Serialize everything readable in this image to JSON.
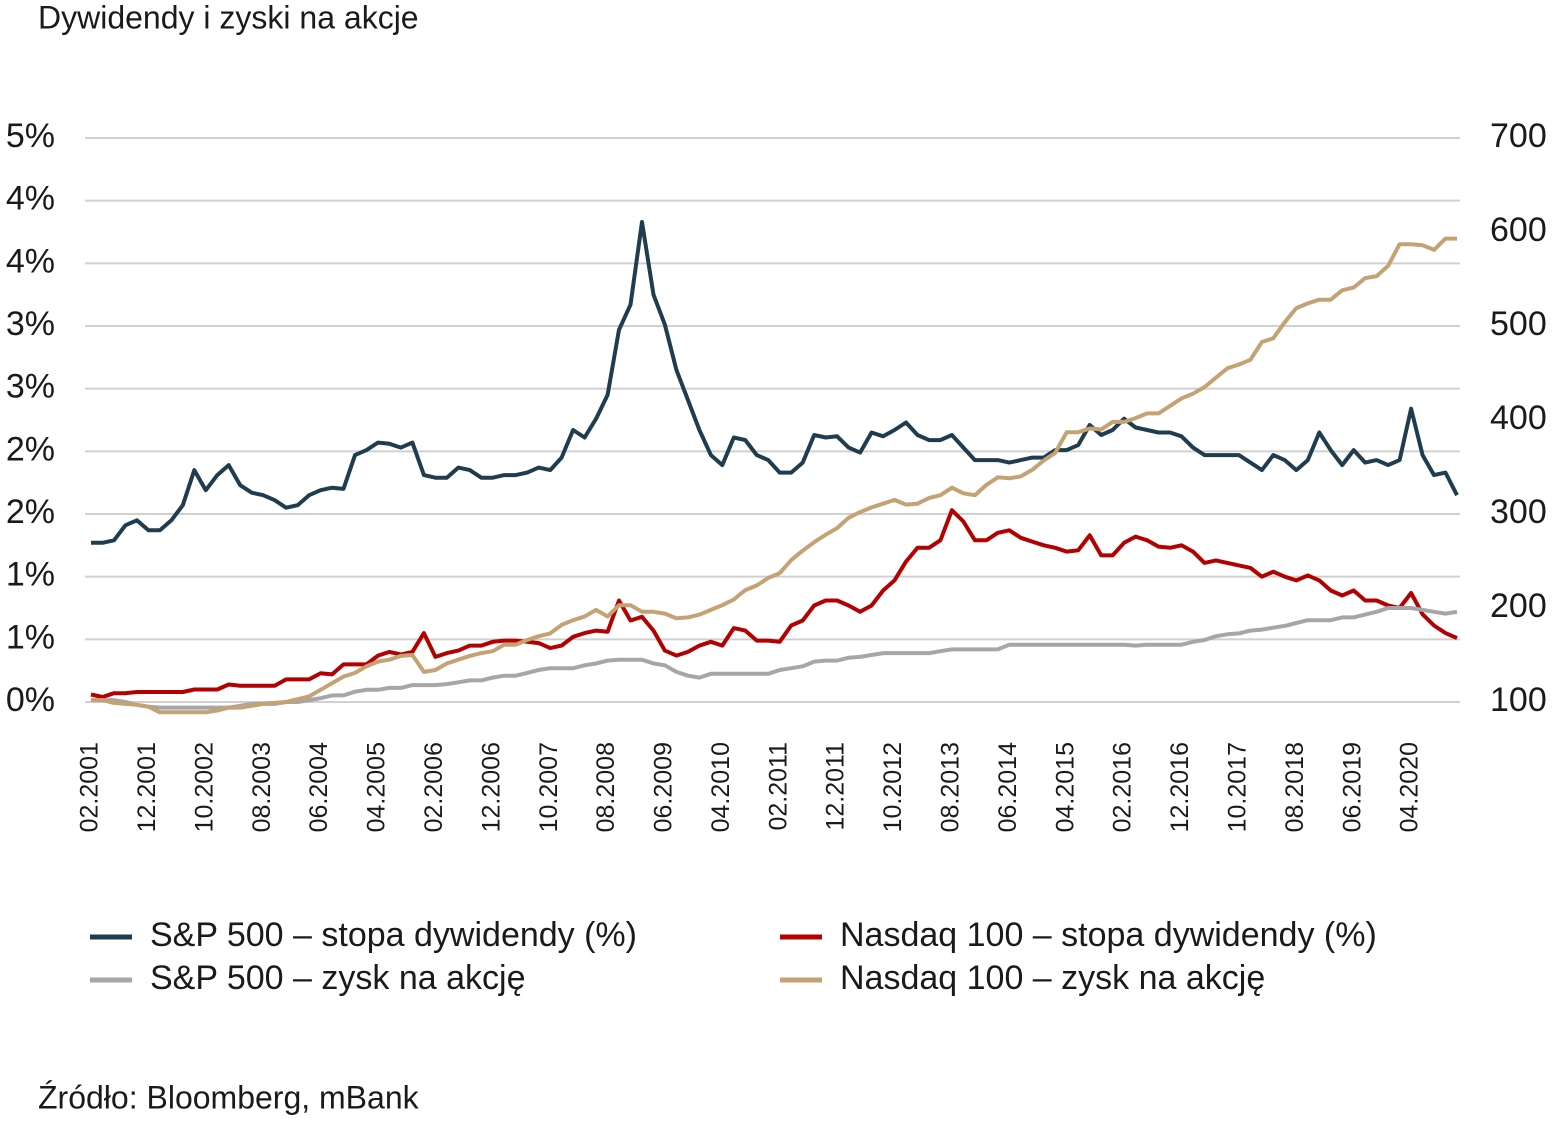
{
  "chart_data": {
    "type": "line",
    "title": "Dywidendy i zyski na akcje",
    "source": "Źródło: Bloomberg, mBank",
    "categories": [
      "02.2001",
      null,
      null,
      null,
      null,
      "12.2001",
      null,
      null,
      null,
      null,
      "10.2002",
      null,
      null,
      null,
      null,
      "08.2003",
      null,
      null,
      null,
      null,
      "06.2004",
      null,
      null,
      null,
      null,
      "04.2005",
      null,
      null,
      null,
      null,
      "02.2006",
      null,
      null,
      null,
      null,
      "12.2006",
      null,
      null,
      null,
      null,
      "10.2007",
      null,
      null,
      null,
      null,
      "08.2008",
      null,
      null,
      null,
      null,
      "06.2009",
      null,
      null,
      null,
      null,
      "04.2010",
      null,
      null,
      null,
      null,
      "02.2011",
      null,
      null,
      null,
      null,
      "12.2011",
      null,
      null,
      null,
      null,
      "10.2012",
      null,
      null,
      null,
      null,
      "08.2013",
      null,
      null,
      null,
      null,
      "06.2014",
      null,
      null,
      null,
      null,
      "04.2015",
      null,
      null,
      null,
      null,
      "02.2016",
      null,
      null,
      null,
      null,
      "12.2016",
      null,
      null,
      null,
      null,
      "10.2017",
      null,
      null,
      null,
      null,
      "08.2018",
      null,
      null,
      null,
      null,
      "06.2019",
      null,
      null,
      null,
      null,
      "04.2020",
      null,
      null,
      null,
      null
    ],
    "ylim": [
      0,
      4.5
    ],
    "yticks": [
      {
        "value": 0,
        "label": "0%"
      },
      {
        "value": 0.5,
        "label": "1%"
      },
      {
        "value": 1,
        "label": "1%"
      },
      {
        "value": 1.5,
        "label": "2%"
      },
      {
        "value": 2,
        "label": "2%"
      },
      {
        "value": 2.5,
        "label": "3%"
      },
      {
        "value": 3,
        "label": "3%"
      },
      {
        "value": 3.5,
        "label": "4%"
      },
      {
        "value": 4,
        "label": "4%"
      },
      {
        "value": 4.5,
        "label": "5%"
      }
    ],
    "y2lim": [
      100,
      700
    ],
    "y2ticks": [
      100,
      200,
      300,
      400,
      500,
      600,
      700
    ],
    "grid": true,
    "series": [
      {
        "name": "S&P 500 – stopa dywidendy (%)",
        "color": "#1f3d4f",
        "values": [
          1.27,
          1.27,
          1.29,
          1.41,
          1.45,
          1.37,
          1.37,
          1.45,
          1.57,
          1.85,
          1.69,
          1.81,
          1.89,
          1.73,
          1.67,
          1.65,
          1.61,
          1.55,
          1.57,
          1.65,
          1.69,
          1.71,
          1.7,
          1.97,
          2.01,
          2.07,
          2.06,
          2.03,
          2.07,
          1.81,
          1.79,
          1.79,
          1.87,
          1.85,
          1.79,
          1.79,
          1.81,
          1.81,
          1.83,
          1.87,
          1.85,
          1.95,
          2.17,
          2.11,
          2.26,
          2.45,
          2.97,
          3.17,
          3.83,
          3.25,
          3.01,
          2.65,
          2.41,
          2.17,
          1.97,
          1.89,
          2.11,
          2.09,
          1.97,
          1.93,
          1.83,
          1.83,
          1.91,
          2.13,
          2.11,
          2.12,
          2.03,
          1.99,
          2.15,
          2.12,
          2.17,
          2.23,
          2.13,
          2.09,
          2.09,
          2.13,
          2.03,
          1.93,
          1.93,
          1.93,
          1.91,
          1.93,
          1.95,
          1.95,
          2.01,
          2.01,
          2.05,
          2.21,
          2.13,
          2.17,
          2.26,
          2.19,
          2.17,
          2.15,
          2.15,
          2.12,
          2.03,
          1.97,
          1.97,
          1.97,
          1.97,
          1.91,
          1.85,
          1.97,
          1.93,
          1.85,
          1.93,
          2.15,
          2.01,
          1.89,
          2.01,
          1.91,
          1.93,
          1.89,
          1.93,
          2.34,
          1.97,
          1.81,
          1.83,
          1.65
        ]
      },
      {
        "name": "Nasdaq 100 – stopa dywidendy (%)",
        "color": "#b30000",
        "values": [
          0.06,
          0.04,
          0.07,
          0.07,
          0.08,
          0.08,
          0.08,
          0.08,
          0.08,
          0.1,
          0.1,
          0.1,
          0.14,
          0.13,
          0.13,
          0.13,
          0.13,
          0.18,
          0.18,
          0.18,
          0.23,
          0.22,
          0.3,
          0.3,
          0.3,
          0.37,
          0.4,
          0.38,
          0.4,
          0.55,
          0.36,
          0.39,
          0.41,
          0.45,
          0.45,
          0.48,
          0.49,
          0.49,
          0.48,
          0.47,
          0.43,
          0.45,
          0.52,
          0.55,
          0.57,
          0.56,
          0.81,
          0.65,
          0.68,
          0.57,
          0.41,
          0.37,
          0.4,
          0.45,
          0.48,
          0.45,
          0.59,
          0.57,
          0.49,
          0.49,
          0.48,
          0.61,
          0.65,
          0.77,
          0.81,
          0.81,
          0.77,
          0.72,
          0.77,
          0.89,
          0.97,
          1.12,
          1.23,
          1.23,
          1.29,
          1.53,
          1.44,
          1.29,
          1.29,
          1.35,
          1.37,
          1.31,
          1.28,
          1.25,
          1.23,
          1.2,
          1.21,
          1.33,
          1.17,
          1.17,
          1.27,
          1.32,
          1.29,
          1.24,
          1.23,
          1.25,
          1.2,
          1.11,
          1.13,
          1.11,
          1.09,
          1.07,
          1.0,
          1.04,
          1.0,
          0.97,
          1.01,
          0.97,
          0.89,
          0.85,
          0.89,
          0.81,
          0.81,
          0.77,
          0.75,
          0.87,
          0.7,
          0.61,
          0.55,
          0.51
        ]
      },
      {
        "name": "S&P 500 – zysk na akcję",
        "color": "#a6a6a6",
        "axis": "y2",
        "values": [
          102,
          102,
          102,
          100,
          97,
          95,
          94,
          94,
          94,
          94,
          94,
          94,
          94,
          96,
          98,
          98,
          98,
          100,
          100,
          102,
          104,
          107,
          107,
          111,
          113,
          113,
          115,
          115,
          118,
          118,
          118,
          119,
          121,
          123,
          123,
          126,
          128,
          128,
          131,
          134,
          136,
          136,
          136,
          139,
          141,
          144,
          145,
          145,
          145,
          141,
          139,
          132,
          128,
          126,
          130,
          130,
          130,
          130,
          130,
          130,
          134,
          136,
          138,
          143,
          144,
          144,
          147,
          148,
          150,
          152,
          152,
          152,
          152,
          152,
          154,
          156,
          156,
          156,
          156,
          156,
          161,
          161,
          161,
          161,
          161,
          161,
          161,
          161,
          161,
          161,
          161,
          160,
          161,
          161,
          161,
          161,
          164,
          166,
          170,
          172,
          173,
          176,
          177,
          179,
          181,
          184,
          187,
          187,
          187,
          190,
          190,
          193,
          196,
          200,
          200,
          200,
          198,
          196,
          194,
          196
        ]
      },
      {
        "name": "Nasdaq 100 – zysk na akcję",
        "color": "#c4a273",
        "axis": "y2",
        "values": [
          102,
          102,
          99,
          98,
          97,
          95,
          89,
          89,
          89,
          89,
          89,
          91,
          94,
          94,
          96,
          98,
          99,
          100,
          103,
          106,
          113,
          120,
          127,
          131,
          138,
          143,
          145,
          149,
          150,
          132,
          134,
          141,
          145,
          149,
          152,
          154,
          161,
          161,
          166,
          170,
          173,
          182,
          187,
          191,
          198,
          191,
          203,
          203,
          196,
          196,
          194,
          189,
          190,
          193,
          198,
          203,
          209,
          219,
          224,
          232,
          237,
          251,
          261,
          270,
          278,
          285,
          296,
          302,
          307,
          311,
          315,
          310,
          311,
          317,
          320,
          328,
          322,
          320,
          331,
          339,
          338,
          340,
          347,
          357,
          365,
          387,
          387,
          391,
          390,
          398,
          398,
          402,
          407,
          407,
          415,
          423,
          428,
          435,
          445,
          455,
          459,
          464,
          483,
          487,
          504,
          519,
          524,
          528,
          528,
          538,
          541,
          551,
          553,
          564,
          587,
          587,
          586,
          581,
          593,
          593
        ]
      }
    ]
  }
}
